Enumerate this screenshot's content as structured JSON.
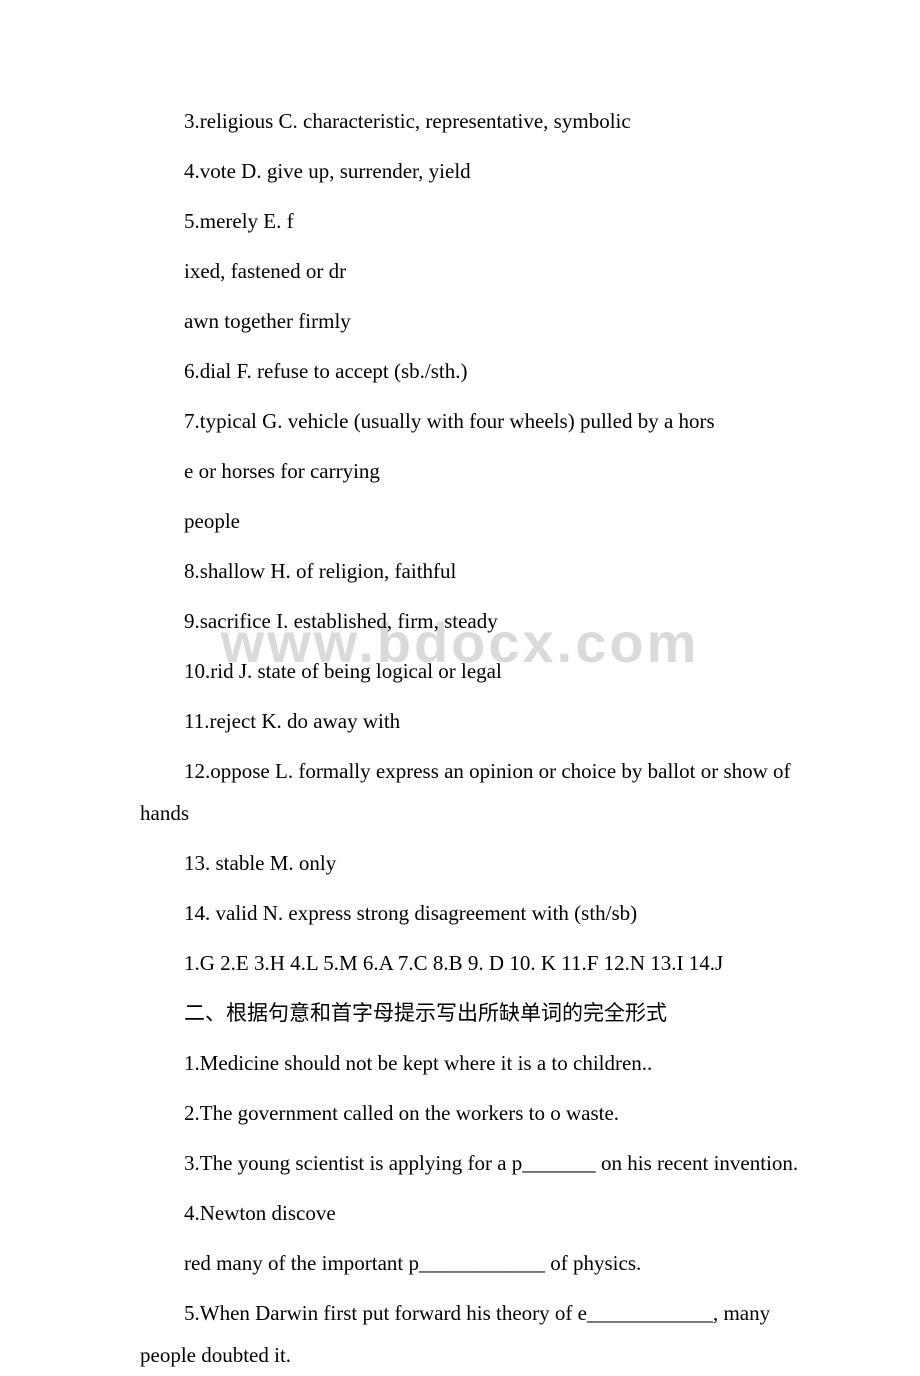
{
  "watermark": "www.bdocx.com",
  "lines": [
    {
      "text": "3.religious     C. characteristic, representative, symbolic",
      "indent": true
    },
    {
      "text": "4.vote     D. give up, surrender, yield",
      "indent": true
    },
    {
      "text": "5.merely     E. f",
      "indent": true
    },
    {
      "text": "ixed, fastened or dr",
      "indent": true
    },
    {
      "text": "awn together firmly",
      "indent": true
    },
    {
      "text": "6.dial     F. refuse to accept (sb./sth.)",
      "indent": true
    },
    {
      "text": "7.typical     G. vehicle (usually with four wheels) pulled by a hors",
      "indent": true
    },
    {
      "text": "e or horses for carrying",
      "indent": true
    },
    {
      "text": "people",
      "indent": true
    },
    {
      "text": "8.shallow     H. of religion, faithful",
      "indent": true
    },
    {
      "text": "9.sacrifice     I. established, firm, steady",
      "indent": true
    },
    {
      "text": "10.rid     J. state of being logical or legal",
      "indent": true
    },
    {
      "text": "11.reject     K. do away with",
      "indent": true
    },
    {
      "text": "12.oppose     L. formally express an opinion or choice by ballot or show of hands",
      "indent": true
    },
    {
      "text": "13. stable     M. only",
      "indent": true
    },
    {
      "text": "14. valid     N. express strong disagreement with (sth/sb)",
      "indent": true
    },
    {
      "text": "1.G 2.E 3.H 4.L 5.M 6.A 7.C 8.B 9. D 10. K 11.F 12.N 13.I 14.J",
      "indent": true
    },
    {
      "text": "二、根据句意和首字母提示写出所缺单词的完全形式",
      "indent": true
    },
    {
      "text": "1.Medicine should not be kept where it is a  to children..",
      "indent": true
    },
    {
      "text": "2.The government called on the workers to o  waste.",
      "indent": true
    },
    {
      "text": "3.The young scientist is applying for a p_______ on his recent invention.",
      "indent": true
    },
    {
      "text": "4.Newton discove",
      "indent": true
    },
    {
      "text": "red many of the important p____________ of physics.",
      "indent": true
    },
    {
      "text": "5.When Darwin first put forward his theory of e____________, many people doubted it.",
      "indent": true
    }
  ]
}
